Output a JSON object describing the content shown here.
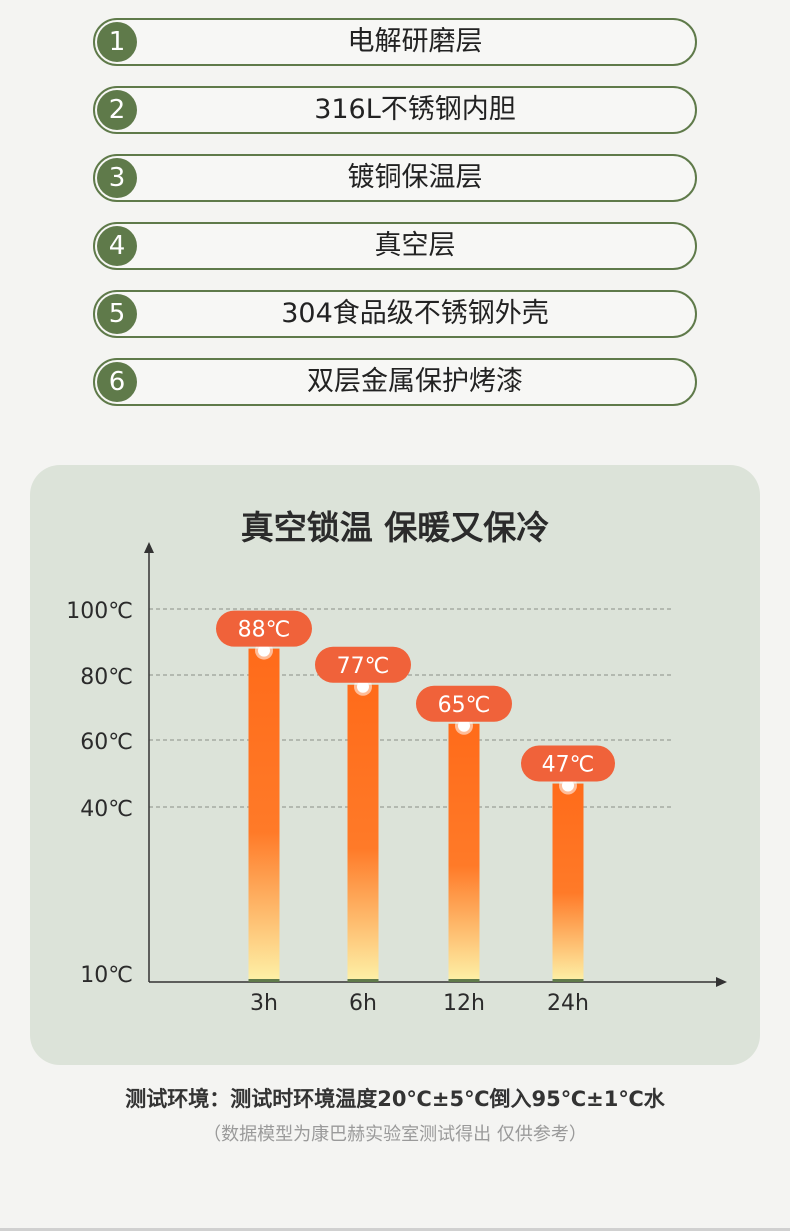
{
  "layers": [
    {
      "num": "1",
      "label": "电解研磨层"
    },
    {
      "num": "2",
      "label": "316L不锈钢内胆"
    },
    {
      "num": "3",
      "label": "镀铜保温层"
    },
    {
      "num": "4",
      "label": "真空层"
    },
    {
      "num": "5",
      "label": "304食品级不锈钢外壳"
    },
    {
      "num": "6",
      "label": "双层金属保护烤漆"
    }
  ],
  "chart_data": {
    "type": "bar",
    "title": "真空锁温 保暖又保冷",
    "categories": [
      "3h",
      "6h",
      "12h",
      "24h"
    ],
    "values": [
      88,
      77,
      65,
      47
    ],
    "data_labels": [
      "88℃",
      "77℃",
      "65℃",
      "47℃"
    ],
    "y_ticks": [
      {
        "value": 10,
        "label": "10℃"
      },
      {
        "value": 40,
        "label": "40℃"
      },
      {
        "value": 60,
        "label": "60℃"
      },
      {
        "value": 80,
        "label": "80℃"
      },
      {
        "value": 100,
        "label": "100℃"
      }
    ],
    "grid": true,
    "bar_color_top": "#ff6b1a",
    "bar_color_bottom": "#fdf2a8",
    "label_color": "#f0623a"
  },
  "footnote": {
    "main": "测试环境：测试时环境温度20℃±5℃倒入95℃±1℃水",
    "sub": "（数据模型为康巴赫实验室测试得出 仅供参考）"
  },
  "colors": {
    "accent_green": "#5f7a4a",
    "card_bg": "#dce3d9"
  }
}
